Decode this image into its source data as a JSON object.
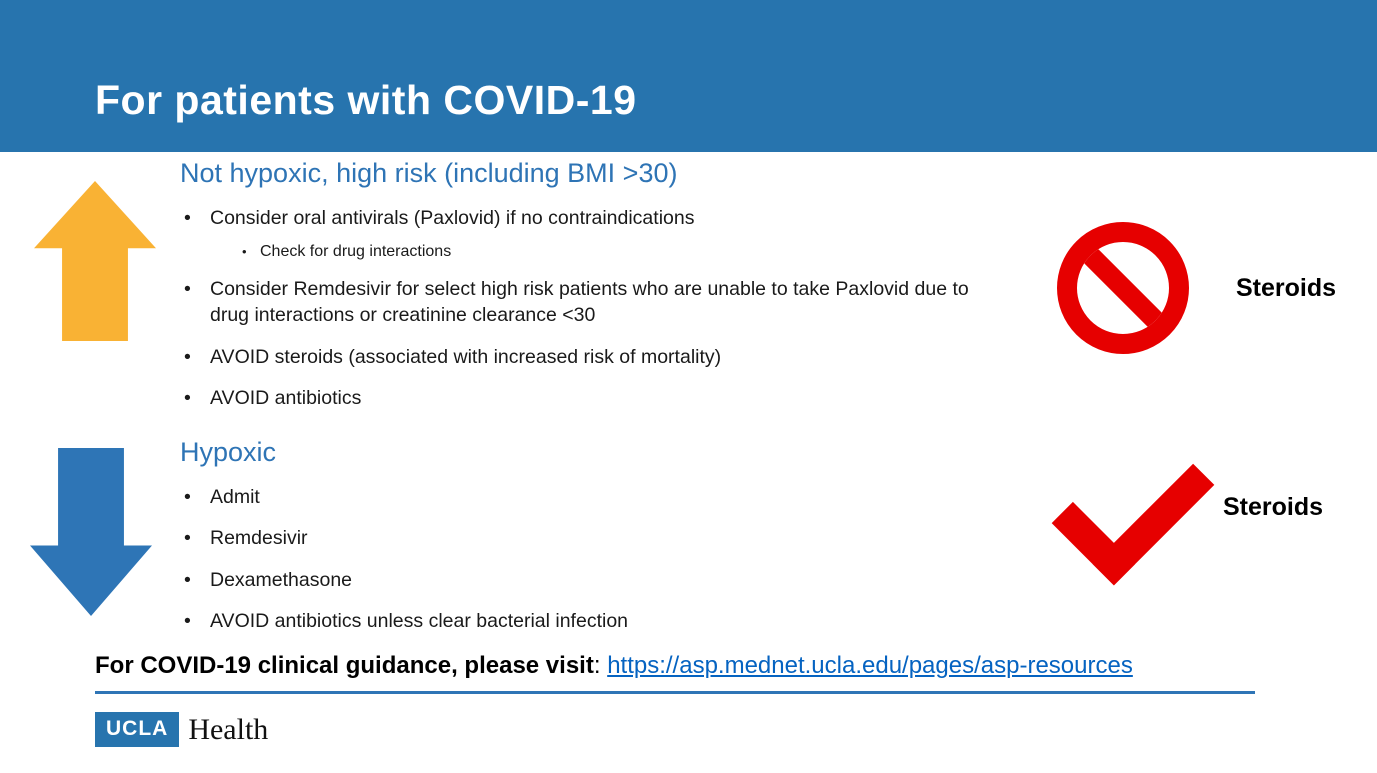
{
  "title": "For patients with COVID-19",
  "sections": [
    {
      "heading": "Not hypoxic, high risk (including BMI >30)",
      "bullets": [
        {
          "text": "Consider oral antivirals (Paxlovid) if no contraindications",
          "level": 1
        },
        {
          "text": "Check for drug interactions",
          "level": 2
        },
        {
          "text": "Consider Remdesivir for select high risk patients who are unable to take Paxlovid due to drug interactions or creatinine clearance <30",
          "level": 1
        },
        {
          "text": "AVOID steroids (associated with increased risk of mortality)",
          "level": 1
        },
        {
          "text": "AVOID antibiotics",
          "level": 1
        }
      ]
    },
    {
      "heading": "Hypoxic",
      "bullets": [
        {
          "text": "Admit",
          "level": 1
        },
        {
          "text": "Remdesivir",
          "level": 1
        },
        {
          "text": "Dexamethasone",
          "level": 1
        },
        {
          "text": "AVOID antibiotics unless clear bacterial infection",
          "level": 1
        }
      ]
    }
  ],
  "annotations": [
    {
      "icon": "no-symbol-icon",
      "label": "Steroids"
    },
    {
      "icon": "checkmark-icon",
      "label": "Steroids"
    }
  ],
  "footer": {
    "label": "For COVID-19 clinical guidance, please visit",
    "separator": ": ",
    "link_text": "https://asp.mednet.ucla.edu/pages/asp-resources"
  },
  "logo": {
    "box_text": "UCLA",
    "wordmark_text": "Health"
  },
  "colors": {
    "banner_blue": "#2774ae",
    "heading_blue": "#2e74b5",
    "arrow_orange": "#f9b234",
    "arrow_blue": "#2e75b6",
    "icon_red": "#e60000",
    "link_blue": "#0563c1"
  }
}
